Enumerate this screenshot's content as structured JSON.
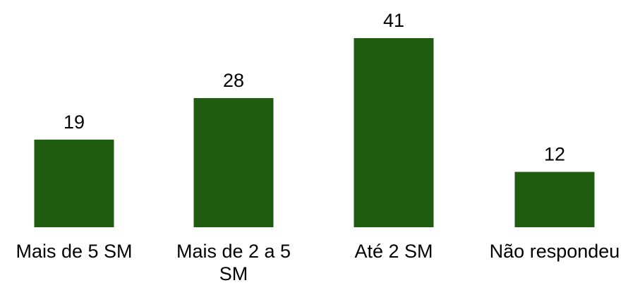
{
  "chart_data": {
    "type": "bar",
    "categories": [
      [
        "Mais de 5 SM"
      ],
      [
        "Mais de 2 a 5",
        "SM"
      ],
      [
        "Até 2 SM"
      ],
      [
        "Não respondeu"
      ]
    ],
    "values": [
      19,
      28,
      41,
      12
    ],
    "bar_color": "#1f5c0f",
    "ylim": [
      0,
      41
    ],
    "grid": false,
    "legend": "none"
  }
}
